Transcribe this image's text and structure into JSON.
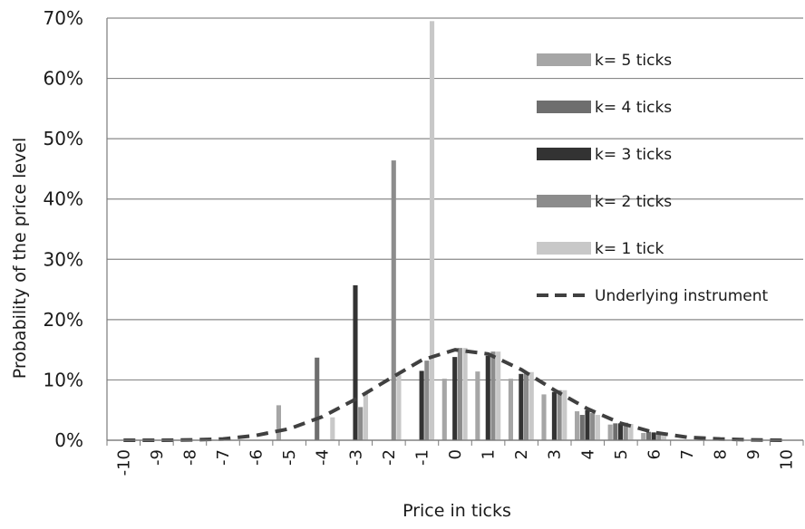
{
  "chart_data": {
    "type": "bar",
    "title": "",
    "xlabel": "Price in ticks",
    "ylabel": "Probability of the price level",
    "ylim": [
      0,
      70
    ],
    "y_ticks": [
      "0%",
      "10%",
      "20%",
      "30%",
      "40%",
      "50%",
      "60%",
      "70%"
    ],
    "y_tick_values": [
      0,
      10,
      20,
      30,
      40,
      50,
      60,
      70
    ],
    "categories": [
      "-10",
      "-9",
      "-8",
      "-7",
      "-6",
      "-5",
      "-4",
      "-3",
      "-2",
      "-1",
      "0",
      "1",
      "2",
      "3",
      "4",
      "5",
      "6",
      "7",
      "8",
      "9",
      "10"
    ],
    "grid": true,
    "legend_position": "right",
    "series": [
      {
        "name": "k= 5 ticks",
        "type": "bar",
        "color": "#a6a6a6",
        "values": [
          0,
          0,
          0,
          0,
          0,
          5.8,
          0,
          0,
          0,
          0,
          10.2,
          11.4,
          10.2,
          7.6,
          4.8,
          2.6,
          1.2,
          0,
          0,
          0,
          0
        ]
      },
      {
        "name": "k= 4 ticks",
        "type": "bar",
        "color": "#6e6e6e",
        "values": [
          0,
          0,
          0,
          0,
          0,
          0,
          13.7,
          0,
          0,
          0,
          0,
          0,
          0,
          0,
          4.2,
          2.8,
          1.4,
          0,
          0,
          0,
          0
        ]
      },
      {
        "name": "k= 3 ticks",
        "type": "bar",
        "color": "#333333",
        "values": [
          0,
          0,
          0,
          0,
          0,
          0,
          0,
          25.7,
          0,
          11.5,
          13.8,
          14.0,
          11.0,
          8.0,
          5.0,
          2.8,
          1.3,
          0,
          0,
          0,
          0
        ]
      },
      {
        "name": "k= 2 ticks",
        "type": "bar",
        "color": "#8c8c8c",
        "values": [
          0,
          0,
          0,
          0,
          0,
          0,
          0,
          5.5,
          46.4,
          13.2,
          15.3,
          14.7,
          11.3,
          8.3,
          4.5,
          2.9,
          1.4,
          0,
          0,
          0,
          0
        ]
      },
      {
        "name": "k= 1 tick",
        "type": "bar",
        "color": "#c8c8c8",
        "values": [
          0,
          0,
          0,
          0,
          0,
          0,
          3.8,
          7.7,
          10.8,
          69.5,
          15.3,
          14.7,
          11.3,
          8.3,
          4.2,
          2.7,
          1.3,
          0,
          0,
          0,
          0
        ]
      },
      {
        "name": "Underlying instrument",
        "type": "line",
        "style": "dashed",
        "color": "#404040",
        "values": [
          0,
          0,
          0.05,
          0.2,
          0.8,
          1.9,
          3.9,
          6.8,
          10.1,
          13.3,
          15.0,
          14.3,
          11.7,
          8.3,
          5.2,
          2.8,
          1.3,
          0.5,
          0.2,
          0.05,
          0
        ]
      }
    ]
  }
}
